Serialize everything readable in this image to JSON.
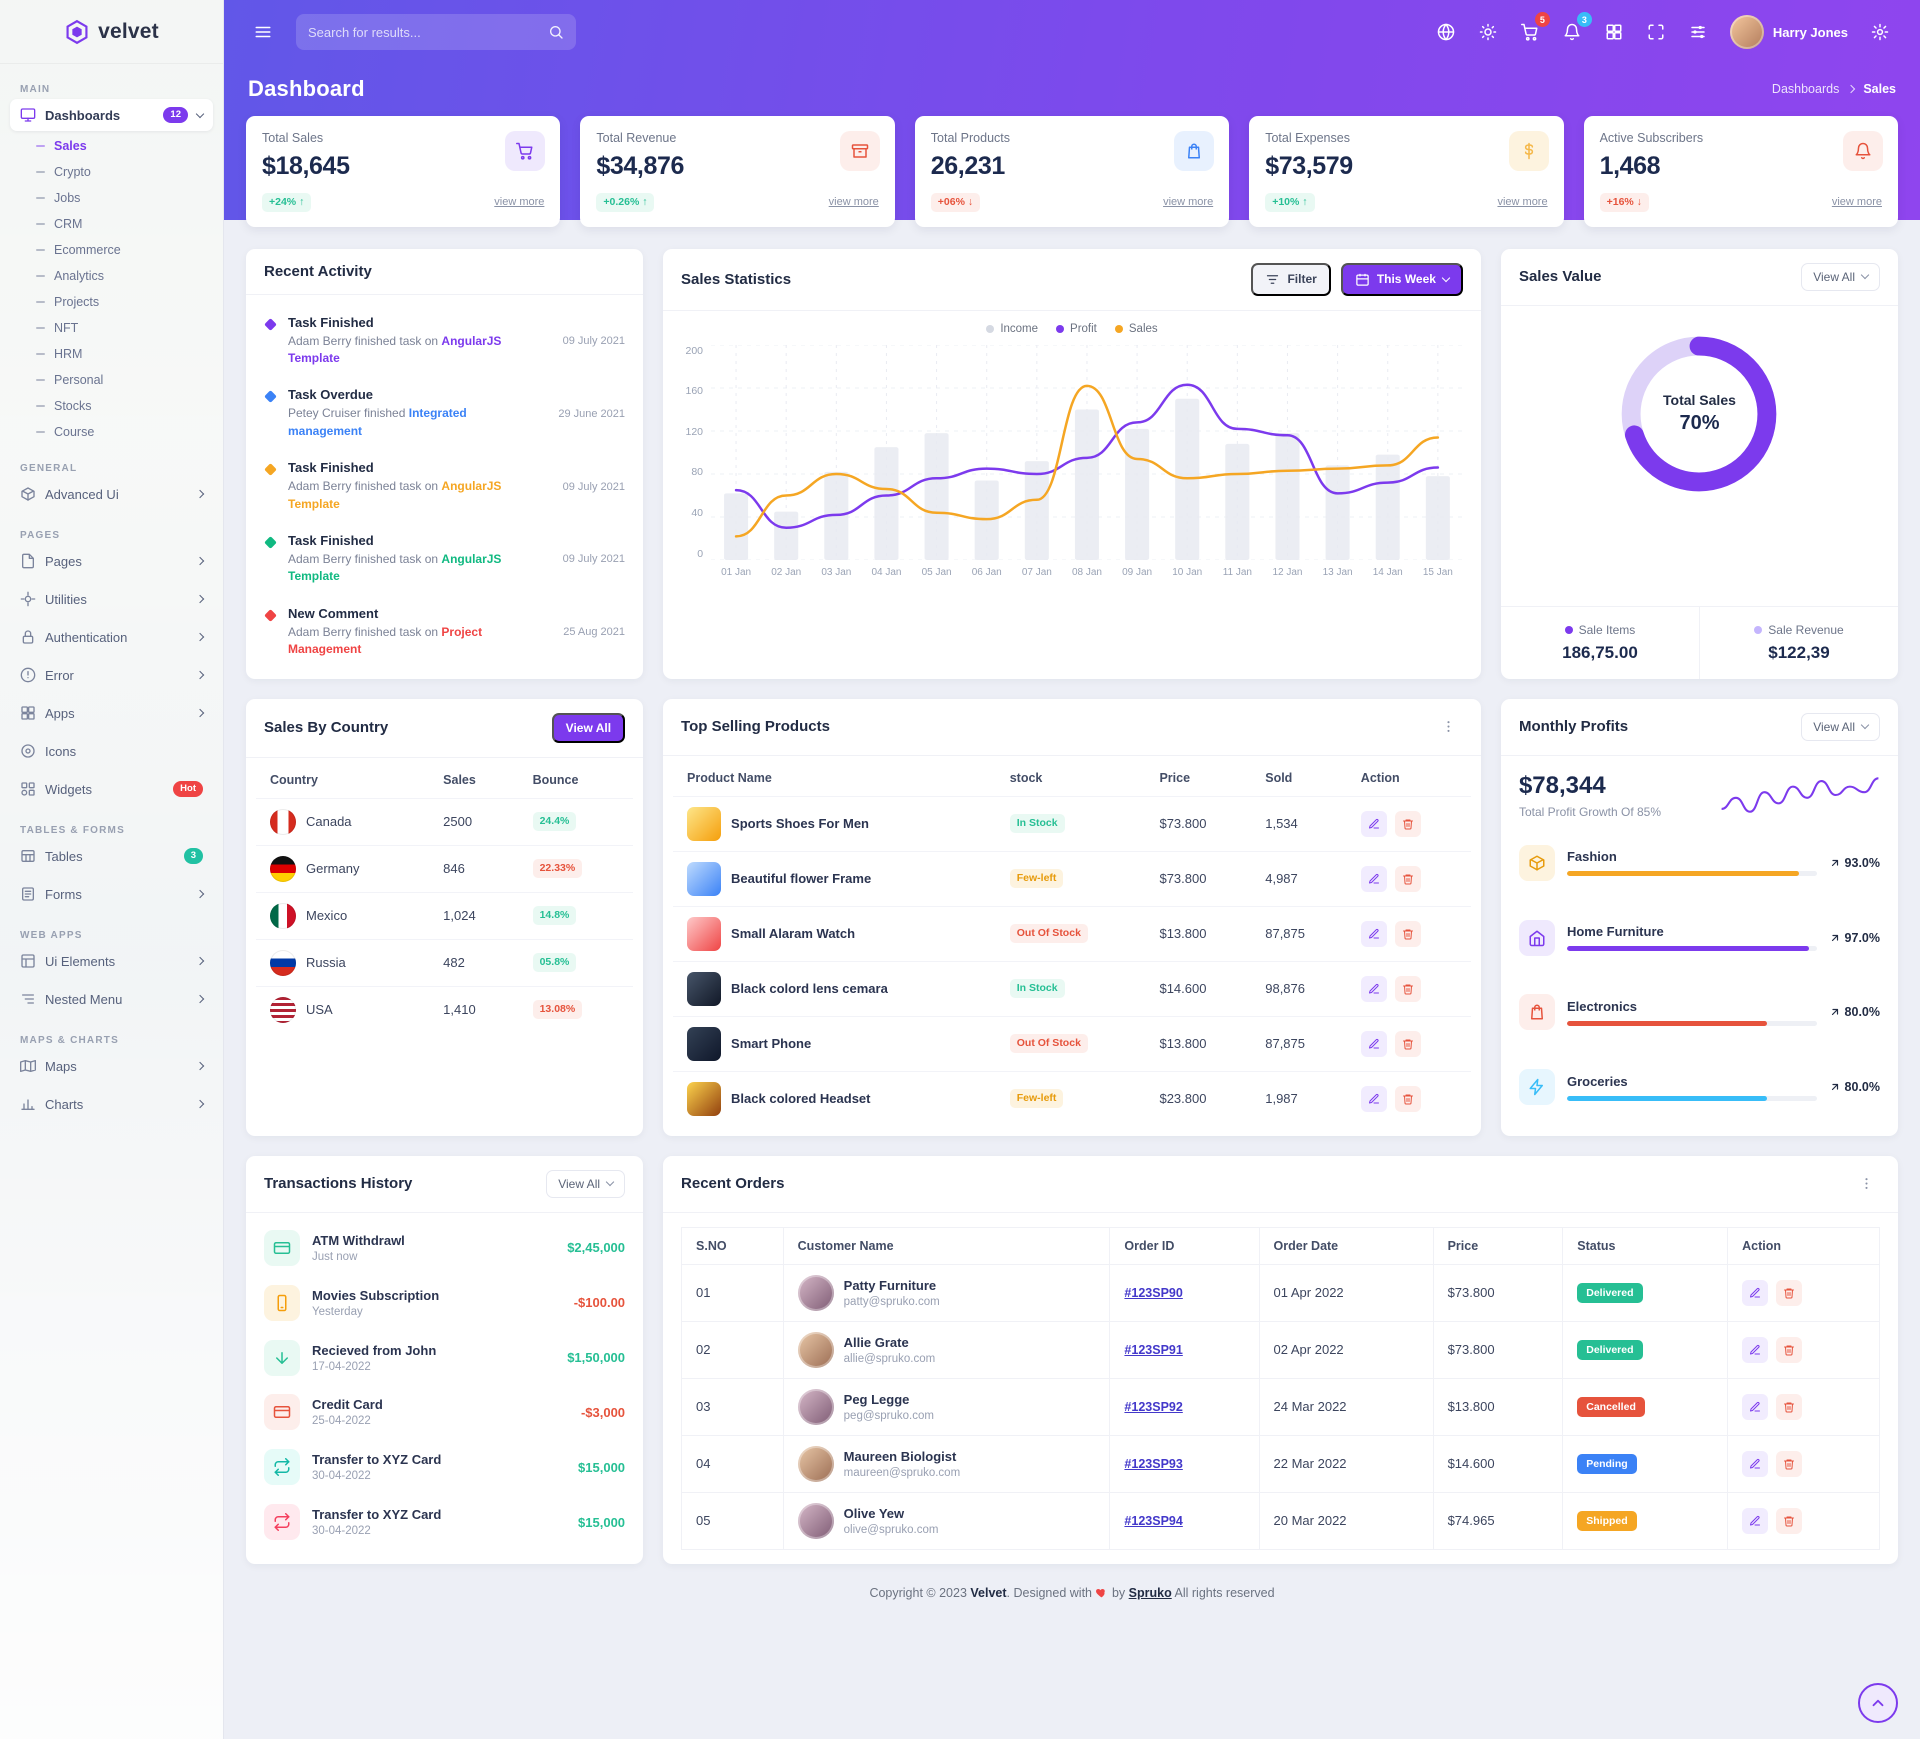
{
  "theme": {
    "primary": "#7c3aed",
    "header_gradient_from": "#6157e8",
    "header_gradient_to": "#8f45ee",
    "success": "#26bf94",
    "danger": "#e6533c",
    "warning": "#f5b849",
    "info": "#3b82f6"
  },
  "brand": {
    "name": "velvet"
  },
  "header": {
    "search_placeholder": "Search for results...",
    "cart_badge": "5",
    "bell_badge": "3",
    "user_name": "Harry Jones"
  },
  "page": {
    "title": "Dashboard",
    "breadcrumb_root": "Dashboards",
    "breadcrumb_current": "Sales"
  },
  "sidebar": {
    "sections": [
      {
        "label": "MAIN",
        "items": [
          {
            "label": "Dashboards",
            "dn": "sidebar-item-dashboards",
            "icon": "#i-monitor",
            "badge": "12",
            "badge_tone": "primary",
            "arrow": "down",
            "cls": "open",
            "children": [
              {
                "label": "Sales",
                "dn": "sidebar-subitem-sales",
                "cls": "active"
              },
              {
                "label": "Crypto",
                "dn": "sidebar-subitem-crypto"
              },
              {
                "label": "Jobs",
                "dn": "sidebar-subitem-jobs"
              },
              {
                "label": "CRM",
                "dn": "sidebar-subitem-crm"
              },
              {
                "label": "Ecommerce",
                "dn": "sidebar-subitem-ecommerce"
              },
              {
                "label": "Analytics",
                "dn": "sidebar-subitem-analytics"
              },
              {
                "label": "Projects",
                "dn": "sidebar-subitem-projects"
              },
              {
                "label": "NFT",
                "dn": "sidebar-subitem-nft"
              },
              {
                "label": "HRM",
                "dn": "sidebar-subitem-hrm"
              },
              {
                "label": "Personal",
                "dn": "sidebar-subitem-personal"
              },
              {
                "label": "Stocks",
                "dn": "sidebar-subitem-stocks"
              },
              {
                "label": "Course",
                "dn": "sidebar-subitem-course"
              }
            ]
          }
        ]
      },
      {
        "label": "GENERAL",
        "items": [
          {
            "label": "Advanced Ui",
            "dn": "sidebar-item-advanced-ui",
            "icon": "#i-box",
            "arrow": "right"
          }
        ]
      },
      {
        "label": "PAGES",
        "items": [
          {
            "label": "Pages",
            "dn": "sidebar-item-pages",
            "icon": "#i-file",
            "arrow": "right"
          },
          {
            "label": "Utilities",
            "dn": "sidebar-item-utilities",
            "icon": "#i-tool",
            "arrow": "right"
          },
          {
            "label": "Authentication",
            "dn": "sidebar-item-authentication",
            "icon": "#i-lock",
            "arrow": "right"
          },
          {
            "label": "Error",
            "dn": "sidebar-item-error",
            "icon": "#i-alert",
            "arrow": "right"
          },
          {
            "label": "Apps",
            "dn": "sidebar-item-apps",
            "icon": "#i-grid",
            "arrow": "right"
          },
          {
            "label": "Icons",
            "dn": "sidebar-item-icons",
            "icon": "#i-circle"
          },
          {
            "label": "Widgets",
            "dn": "sidebar-item-widgets",
            "icon": "#i-widget",
            "badge": "Hot",
            "badge_tone": "hot"
          }
        ]
      },
      {
        "label": "TABLES & FORMS",
        "items": [
          {
            "label": "Tables",
            "dn": "sidebar-item-tables",
            "icon": "#i-table",
            "badge": "3",
            "badge_tone": "teal"
          },
          {
            "label": "Forms",
            "dn": "sidebar-item-forms",
            "icon": "#i-form",
            "arrow": "right"
          }
        ]
      },
      {
        "label": "WEB APPS",
        "items": [
          {
            "label": "Ui Elements",
            "dn": "sidebar-item-ui-elements",
            "icon": "#i-ui",
            "arrow": "right"
          },
          {
            "label": "Nested Menu",
            "dn": "sidebar-item-nested-menu",
            "icon": "#i-menu",
            "arrow": "right"
          }
        ]
      },
      {
        "label": "MAPS & CHARTS",
        "items": [
          {
            "label": "Maps",
            "dn": "sidebar-item-maps",
            "icon": "#i-map",
            "arrow": "right"
          },
          {
            "label": "Charts",
            "dn": "sidebar-item-charts",
            "icon": "#i-chart",
            "arrow": "right"
          }
        ]
      }
    ]
  },
  "stats": [
    {
      "label": "Total Sales",
      "value": "$18,645",
      "delta": "+24% ↑",
      "trend": "success",
      "view_more": "view more",
      "icon": "#i-cart",
      "tone": "primary"
    },
    {
      "label": "Total Revenue",
      "value": "$34,876",
      "delta": "+0.26% ↑",
      "trend": "success",
      "view_more": "view more",
      "icon": "#i-archive",
      "tone": "danger"
    },
    {
      "label": "Total Products",
      "value": "26,231",
      "delta": "+06% ↓",
      "trend": "danger",
      "view_more": "view more",
      "icon": "#i-bag",
      "tone": "info"
    },
    {
      "label": "Total Expenses",
      "value": "$73,579",
      "delta": "+10% ↑",
      "trend": "success",
      "view_more": "view more",
      "icon": "#i-dollar",
      "tone": "warning"
    },
    {
      "label": "Active Subscribers",
      "value": "1,468",
      "delta": "+16% ↓",
      "trend": "danger",
      "view_more": "view more",
      "icon": "#i-bell",
      "tone": "danger"
    }
  ],
  "recent_activity": {
    "title": "Recent Activity",
    "items": [
      {
        "title": "Task Finished",
        "text": "Adam Berry finished task on",
        "highlight": "AngularJS Template",
        "date": "09 July 2021",
        "color": "#7c3aed"
      },
      {
        "title": "Task Overdue",
        "text": "Petey Cruiser finished",
        "highlight": "Integrated management",
        "date": "29 June 2021",
        "color": "#3b82f6"
      },
      {
        "title": "Task Finished",
        "text": "Adam Berry finished task on",
        "highlight": "AngularJS Template",
        "date": "09 July 2021",
        "color": "#f5a623"
      },
      {
        "title": "Task Finished",
        "text": "Adam Berry finished task on",
        "highlight": "AngularJS Template",
        "date": "09 July 2021",
        "color": "#10b981"
      },
      {
        "title": "New Comment",
        "text": "Adam Berry finished task on",
        "highlight": "Project Management",
        "date": "25 Aug 2021",
        "color": "#ef4444"
      }
    ]
  },
  "sales_statistics": {
    "title": "Sales Statistics",
    "filter_label": "Filter",
    "range_label": "This Week",
    "legend": [
      {
        "name": "Income",
        "color": "#d5d9e2"
      },
      {
        "name": "Profit",
        "color": "#7c3aed"
      },
      {
        "name": "Sales",
        "color": "#f5a623"
      }
    ],
    "chart": {
      "type": "line+bar",
      "x": [
        "01 Jan",
        "02 Jan",
        "03 Jan",
        "04 Jan",
        "05 Jan",
        "06 Jan",
        "07 Jan",
        "08 Jan",
        "09 Jan",
        "10 Jan",
        "11 Jan",
        "12 Jan",
        "13 Jan",
        "14 Jan",
        "15 Jan"
      ],
      "yticks": [
        200,
        160,
        120,
        80,
        40,
        0
      ],
      "ylim": [
        0,
        200
      ],
      "bars": {
        "name": "Income",
        "color": "#e8eaf1",
        "values": [
          62,
          45,
          82,
          105,
          118,
          74,
          92,
          140,
          122,
          150,
          108,
          118,
          88,
          98,
          78
        ]
      },
      "lines": [
        {
          "name": "Profit",
          "color": "#7c3aed",
          "values": [
            65,
            30,
            42,
            60,
            76,
            85,
            80,
            95,
            128,
            163,
            122,
            116,
            62,
            72,
            86
          ]
        },
        {
          "name": "Sales",
          "color": "#f5a623",
          "values": [
            22,
            60,
            80,
            66,
            44,
            38,
            56,
            162,
            94,
            76,
            80,
            83,
            85,
            88,
            114
          ]
        }
      ]
    }
  },
  "sales_value": {
    "title": "Sales Value",
    "view_all": "View All",
    "donut": {
      "percent": 70,
      "label": "Total Sales",
      "value": "70%",
      "color": "#7c3aed",
      "track": "#ddd2f8"
    },
    "stats": [
      {
        "label": "Sale Items",
        "value": "186,75.00",
        "dot": "#7c3aed"
      },
      {
        "label": "Sale Revenue",
        "value": "$122,39",
        "dot": "#c4b5fd"
      }
    ]
  },
  "sales_by_country": {
    "title": "Sales By Country",
    "view_all": "View All",
    "columns": [
      "Country",
      "Sales",
      "Bounce"
    ],
    "rows": [
      {
        "country": "Canada",
        "sales": "2500",
        "bounce": "24.4%",
        "tone": "success",
        "flag_bg": "linear-gradient(90deg,#d52b1e 28%,#ffffff 28%,#ffffff 72%,#d52b1e 72%)"
      },
      {
        "country": "Germany",
        "sales": "846",
        "bounce": "22.33%",
        "tone": "danger",
        "flag_bg": "linear-gradient(180deg,#111111 33%,#dd0000 33%,#dd0000 66%,#ffce00 66%)"
      },
      {
        "country": "Mexico",
        "sales": "1,024",
        "bounce": "14.8%",
        "tone": "success",
        "flag_bg": "linear-gradient(90deg,#006847 33%,#ffffff 33%,#ffffff 66%,#ce1126 66%)"
      },
      {
        "country": "Russia",
        "sales": "482",
        "bounce": "05.8%",
        "tone": "success",
        "flag_bg": "linear-gradient(180deg,#ffffff 33%,#0039a6 33%,#0039a6 66%,#d52b1e 66%)"
      },
      {
        "country": "USA",
        "sales": "1,410",
        "bounce": "13.08%",
        "tone": "danger",
        "flag_bg": "repeating-linear-gradient(180deg,#b22234 0 3px,#ffffff 3px 6px)"
      }
    ]
  },
  "top_selling": {
    "title": "Top Selling Products",
    "columns": [
      "Product Name",
      "stock",
      "Price",
      "Sold",
      "Action"
    ],
    "rows": [
      {
        "name": "Sports Shoes For Men",
        "stock": "In Stock",
        "tone": "success",
        "price": "$73.800",
        "sold": "1,534",
        "thumb": "linear-gradient(135deg,#fde68a,#f59e0b)"
      },
      {
        "name": "Beautiful flower Frame",
        "stock": "Few-left",
        "tone": "warning",
        "price": "$73.800",
        "sold": "4,987",
        "thumb": "linear-gradient(135deg,#bfdbfe,#3b82f6)"
      },
      {
        "name": "Small Alaram Watch",
        "stock": "Out Of Stock",
        "tone": "danger",
        "price": "$13.800",
        "sold": "87,875",
        "thumb": "linear-gradient(135deg,#fecaca,#ef4444)"
      },
      {
        "name": "Black colord lens cemara",
        "stock": "In Stock",
        "tone": "success",
        "price": "$14.600",
        "sold": "98,876",
        "thumb": "linear-gradient(135deg,#475569,#111827)"
      },
      {
        "name": "Smart Phone",
        "stock": "Out Of Stock",
        "tone": "danger",
        "price": "$13.800",
        "sold": "87,875",
        "thumb": "linear-gradient(135deg,#334155,#0f172a)"
      },
      {
        "name": "Black colored Headset",
        "stock": "Few-left",
        "tone": "warning",
        "price": "$23.800",
        "sold": "1,987",
        "thumb": "linear-gradient(135deg,#fcd34d,#92400e)"
      }
    ]
  },
  "monthly_profits": {
    "title": "Monthly Profits",
    "view_all": "View All",
    "total": "$78,344",
    "subtitle": "Total Profit Growth Of 85%",
    "spark": [
      14,
      22,
      12,
      26,
      18,
      30,
      22,
      34,
      24,
      30,
      26,
      36
    ],
    "spark_color": "#7c3aed",
    "items": [
      {
        "label": "Fashion",
        "percent": "93.0%",
        "width": "93%",
        "color": "#f5a623",
        "icon": "#i-box",
        "icon_bg": "#fdf3df",
        "icon_color": "#e79b0c"
      },
      {
        "label": "Home Furniture",
        "percent": "97.0%",
        "width": "97%",
        "color": "#7c3aed",
        "icon": "#i-home",
        "icon_bg": "#efe9fd",
        "icon_color": "#7c3aed"
      },
      {
        "label": "Electronics",
        "percent": "80.0%",
        "width": "80%",
        "color": "#e6533c",
        "icon": "#i-bag",
        "icon_bg": "#fdeeeb",
        "icon_color": "#e6533c"
      },
      {
        "label": "Groceries",
        "percent": "80.0%",
        "width": "80%",
        "color": "#38bdf8",
        "icon": "#i-zap",
        "icon_bg": "#e7f6fe",
        "icon_color": "#38bdf8"
      }
    ]
  },
  "transactions": {
    "title": "Transactions History",
    "view_all": "View All",
    "items": [
      {
        "label": "ATM Withdrawl",
        "time": "Just now",
        "amount": "$2,45,000",
        "tone": "success",
        "icon": "#i-card",
        "icon_bg": "#e9f9f3",
        "icon_color": "#26bf94"
      },
      {
        "label": "Movies Subscription",
        "time": "Yesterday",
        "amount": "-$100.00",
        "tone": "danger",
        "icon": "#i-phone",
        "icon_bg": "#fdf3df",
        "icon_color": "#f59e0b"
      },
      {
        "label": "Recieved from John",
        "time": "17-04-2022",
        "amount": "$1,50,000",
        "tone": "success",
        "icon": "#i-arrow-down",
        "icon_bg": "#e9f9f3",
        "icon_color": "#26bf94"
      },
      {
        "label": "Credit Card",
        "time": "25-04-2022",
        "amount": "-$3,000",
        "tone": "danger",
        "icon": "#i-card",
        "icon_bg": "#fdeeeb",
        "icon_color": "#e6533c"
      },
      {
        "label": "Transfer to XYZ Card",
        "time": "30-04-2022",
        "amount": "$15,000",
        "tone": "success",
        "icon": "#i-repeat",
        "icon_bg": "#e6fbf8",
        "icon_color": "#14b8a6"
      },
      {
        "label": "Transfer to XYZ Card",
        "time": "30-04-2022",
        "amount": "$15,000",
        "tone": "success",
        "icon": "#i-repeat",
        "icon_bg": "#ffe9ee",
        "icon_color": "#f43f5e"
      }
    ]
  },
  "recent_orders": {
    "title": "Recent Orders",
    "columns": [
      "S.NO",
      "Customer Name",
      "Order ID",
      "Order Date",
      "Price",
      "Status",
      "Action"
    ],
    "rows": [
      {
        "sno": "01",
        "name": "Patty Furniture",
        "email": "patty@spruko.com",
        "order_id": "#123SP90",
        "date": "01 Apr 2022",
        "price": "$73.800",
        "status": "Delivered",
        "tone": "success"
      },
      {
        "sno": "02",
        "name": "Allie Grate",
        "email": "allie@spruko.com",
        "order_id": "#123SP91",
        "date": "02 Apr 2022",
        "price": "$73.800",
        "status": "Delivered",
        "tone": "success"
      },
      {
        "sno": "03",
        "name": "Peg Legge",
        "email": "peg@spruko.com",
        "order_id": "#123SP92",
        "date": "24 Mar 2022",
        "price": "$13.800",
        "status": "Cancelled",
        "tone": "danger"
      },
      {
        "sno": "04",
        "name": "Maureen Biologist",
        "email": "maureen@spruko.com",
        "order_id": "#123SP93",
        "date": "22 Mar 2022",
        "price": "$14.600",
        "status": "Pending",
        "tone": "info"
      },
      {
        "sno": "05",
        "name": "Olive Yew",
        "email": "olive@spruko.com",
        "order_id": "#123SP94",
        "date": "20 Mar 2022",
        "price": "$74.965",
        "status": "Shipped",
        "tone": "warning"
      }
    ]
  },
  "footer": {
    "prefix": "Copyright © 2023",
    "brand": "Velvet",
    "middle": ". Designed with",
    "by": "by",
    "link": "Spruko",
    "suffix": "All rights reserved"
  }
}
